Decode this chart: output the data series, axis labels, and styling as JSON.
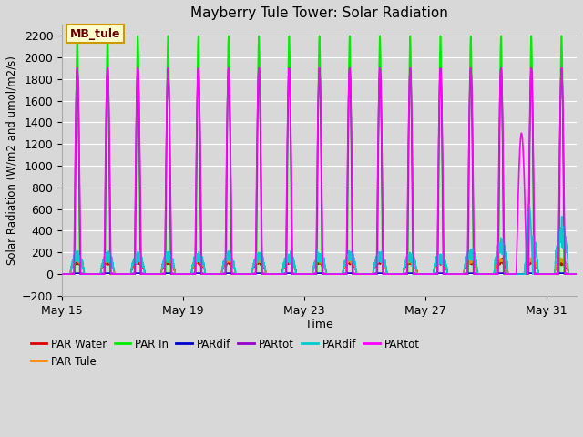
{
  "title": "Mayberry Tule Tower: Solar Radiation",
  "xlabel": "Time",
  "ylabel": "Solar Radiation (W/m2 and umol/m2/s)",
  "ylim": [
    -200,
    2300
  ],
  "yticks": [
    -200,
    0,
    200,
    400,
    600,
    800,
    1000,
    1200,
    1400,
    1600,
    1800,
    2000,
    2200
  ],
  "bg_color": "#d8d8d8",
  "plot_bg_color": "#d8d8d8",
  "grid_color": "#ffffff",
  "legend_label": "MB_tule",
  "legend_bg": "#ffffcc",
  "legend_border": "#cc9900",
  "series": [
    {
      "name": "PAR Water",
      "color": "#dd0000",
      "lw": 1.2
    },
    {
      "name": "PAR Tule",
      "color": "#ff8800",
      "lw": 1.2
    },
    {
      "name": "PAR In",
      "color": "#00ee00",
      "lw": 1.2
    },
    {
      "name": "PARdif",
      "color": "#0000cc",
      "lw": 1.2
    },
    {
      "name": "PARtot",
      "color": "#9900cc",
      "lw": 1.2
    },
    {
      "name": "PARdif",
      "color": "#00cccc",
      "lw": 1.2
    },
    {
      "name": "PARtot",
      "color": "#ff00ff",
      "lw": 1.2
    }
  ],
  "x_tick_labels": [
    "May 15",
    "May 19",
    "May 23",
    "May 27",
    "May 31"
  ],
  "x_tick_positions": [
    0,
    4,
    8,
    12,
    16
  ],
  "num_days": 17,
  "samples_per_day": 288
}
